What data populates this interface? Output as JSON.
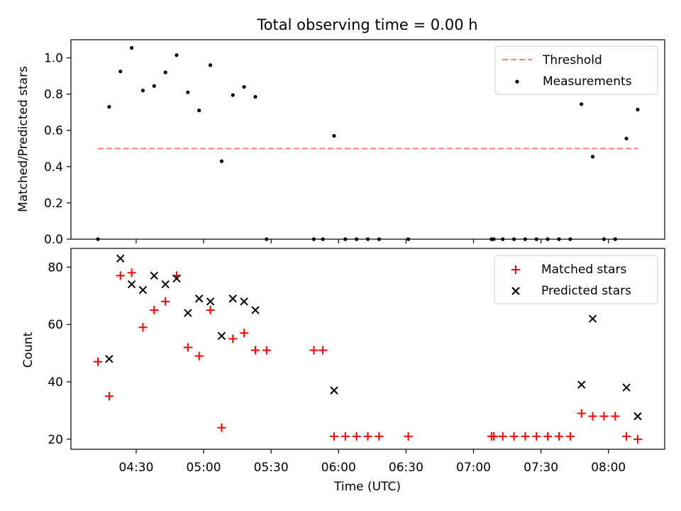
{
  "chart_data": [
    {
      "type": "scatter",
      "title": "Total observing time = 0.00 h",
      "xlabel": "",
      "ylabel": "Matched/Predicted stars",
      "ylim": [
        0,
        1.1
      ],
      "yticks": [
        0.0,
        0.2,
        0.4,
        0.6,
        0.8,
        1.0
      ],
      "ytick_labels": [
        "0.0",
        "0.2",
        "0.4",
        "0.6",
        "0.8",
        "1.0"
      ],
      "legend_position": "top-right",
      "grid": false,
      "series": [
        {
          "name": "Threshold",
          "style": "dashed-line",
          "color": "#ff7f7f",
          "x": [
            "04:13",
            "08:13"
          ],
          "y": [
            0.5,
            0.5
          ]
        },
        {
          "name": "Measurements",
          "style": "dots",
          "color": "#000000",
          "x": [
            "04:13",
            "04:18",
            "04:23",
            "04:28",
            "04:33",
            "04:38",
            "04:43",
            "04:48",
            "04:53",
            "04:58",
            "05:03",
            "05:08",
            "05:13",
            "05:18",
            "05:23",
            "05:28",
            "05:49",
            "05:53",
            "05:58",
            "06:03",
            "06:08",
            "06:13",
            "06:18",
            "06:31",
            "07:08",
            "07:09",
            "07:13",
            "07:18",
            "07:23",
            "07:28",
            "07:33",
            "07:38",
            "07:43",
            "07:48",
            "07:53",
            "07:58",
            "08:03",
            "08:08",
            "08:13"
          ],
          "y": [
            0.0,
            0.73,
            0.925,
            1.055,
            0.82,
            0.845,
            0.92,
            1.015,
            0.81,
            0.71,
            0.96,
            0.43,
            0.795,
            0.84,
            0.785,
            0.0,
            0.0,
            0.0,
            0.57,
            0.0,
            0.0,
            0.0,
            0.0,
            0.0,
            0.0,
            0.0,
            0.0,
            0.0,
            0.0,
            0.0,
            0.0,
            0.0,
            0.0,
            0.745,
            0.455,
            0.0,
            0.0,
            0.555,
            0.715
          ]
        }
      ]
    },
    {
      "type": "scatter",
      "title": "",
      "xlabel": "Time (UTC)",
      "ylabel": "Count",
      "ylim": [
        16.5,
        86.5
      ],
      "yticks": [
        20,
        40,
        60,
        80
      ],
      "ytick_labels": [
        "20",
        "40",
        "60",
        "80"
      ],
      "xticks": [
        "04:30",
        "05:00",
        "05:30",
        "06:00",
        "06:30",
        "07:00",
        "07:30",
        "08:00"
      ],
      "legend_position": "top-right",
      "grid": false,
      "series": [
        {
          "name": "Matched stars",
          "style": "plus",
          "color": "#ff0000",
          "x": [
            "04:13",
            "04:18",
            "04:23",
            "04:28",
            "04:33",
            "04:38",
            "04:43",
            "04:48",
            "04:53",
            "04:58",
            "05:03",
            "05:08",
            "05:13",
            "05:18",
            "05:23",
            "05:28",
            "05:49",
            "05:53",
            "05:58",
            "06:03",
            "06:08",
            "06:13",
            "06:18",
            "06:31",
            "07:08",
            "07:09",
            "07:13",
            "07:18",
            "07:23",
            "07:28",
            "07:33",
            "07:38",
            "07:43",
            "07:48",
            "07:53",
            "07:58",
            "08:03",
            "08:08",
            "08:13"
          ],
          "y": [
            47,
            35,
            77,
            78,
            59,
            65,
            68,
            77,
            52,
            49,
            65,
            24,
            55,
            57,
            51,
            51,
            51,
            51,
            21,
            21,
            21,
            21,
            21,
            21,
            21,
            21,
            21,
            21,
            21,
            21,
            21,
            21,
            21,
            29,
            28,
            28,
            28,
            21,
            20
          ]
        },
        {
          "name": "Predicted stars",
          "style": "x",
          "color": "#000000",
          "x": [
            "04:18",
            "04:23",
            "04:28",
            "04:33",
            "04:38",
            "04:43",
            "04:48",
            "04:53",
            "04:58",
            "05:03",
            "05:08",
            "05:13",
            "05:18",
            "05:23",
            "05:58",
            "07:48",
            "07:53",
            "08:08",
            "08:13"
          ],
          "y": [
            48,
            83,
            74,
            72,
            77,
            74,
            76,
            64,
            69,
            68,
            56,
            69,
            68,
            65,
            37,
            39,
            62,
            38,
            28
          ]
        }
      ]
    }
  ]
}
